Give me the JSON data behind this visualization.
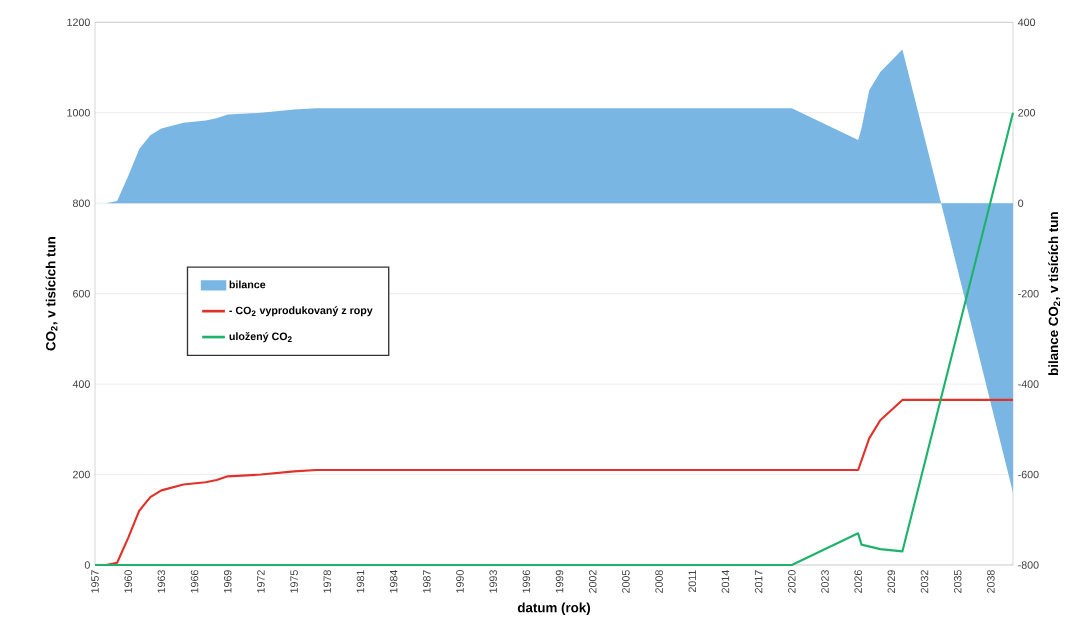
{
  "chart_data": {
    "type": "line",
    "xlabel": "datum (rok)",
    "ylabel": "CO$_{2}$, v tisících tun",
    "y2label": "bilance CO$_{2}$, v tisících tun",
    "xlim": [
      1957,
      2040
    ],
    "xticks": [
      1957,
      1960,
      1963,
      1966,
      1969,
      1972,
      1975,
      1978,
      1981,
      1984,
      1987,
      1990,
      1993,
      1996,
      1999,
      2002,
      2005,
      2008,
      2011,
      2014,
      2017,
      2020,
      2023,
      2026,
      2029,
      2032,
      2035,
      2038
    ],
    "ylim": [
      0,
      1200
    ],
    "yticks": [
      0,
      200,
      400,
      600,
      800,
      1000,
      1200
    ],
    "y2lim": [
      -800,
      400
    ],
    "y2ticks": [
      -800,
      -600,
      -400,
      -200,
      0,
      200,
      400
    ],
    "grid": true,
    "legend": "left",
    "series": [
      {
        "name": "bilance",
        "type": "area",
        "axis": "y2",
        "color": "#7ab6e3",
        "x": [
          1957,
          1958,
          1959,
          1960,
          1961,
          1962,
          1963,
          1965,
          1967,
          1968,
          1969,
          1972,
          1975,
          1977,
          2020,
          2026,
          2026.3,
          2027,
          2028,
          2030,
          2033.5,
          2040
        ],
        "values": [
          0,
          0,
          5,
          60,
          120,
          150,
          165,
          178,
          183,
          188,
          196,
          200,
          207,
          210,
          210,
          140,
          165,
          250,
          290,
          340,
          0,
          -640
        ]
      },
      {
        "name": "- CO$_{2}$ vyprodukovaný z ropy",
        "color": "#e0322a",
        "x": [
          1957,
          1958,
          1959,
          1960,
          1961,
          1962,
          1963,
          1965,
          1967,
          1968,
          1969,
          1972,
          1975,
          1977,
          2026,
          2027,
          2028,
          2030,
          2040
        ],
        "values": [
          0,
          0,
          5,
          60,
          120,
          150,
          165,
          178,
          183,
          188,
          196,
          200,
          207,
          210,
          210,
          280,
          320,
          365,
          365
        ]
      },
      {
        "name": "uložený CO$_{2}$",
        "color": "#1db36b",
        "x": [
          1957,
          2020,
          2026,
          2026.3,
          2028,
          2030,
          2040
        ],
        "values": [
          0,
          0,
          70,
          45,
          35,
          30,
          1000
        ]
      }
    ]
  }
}
